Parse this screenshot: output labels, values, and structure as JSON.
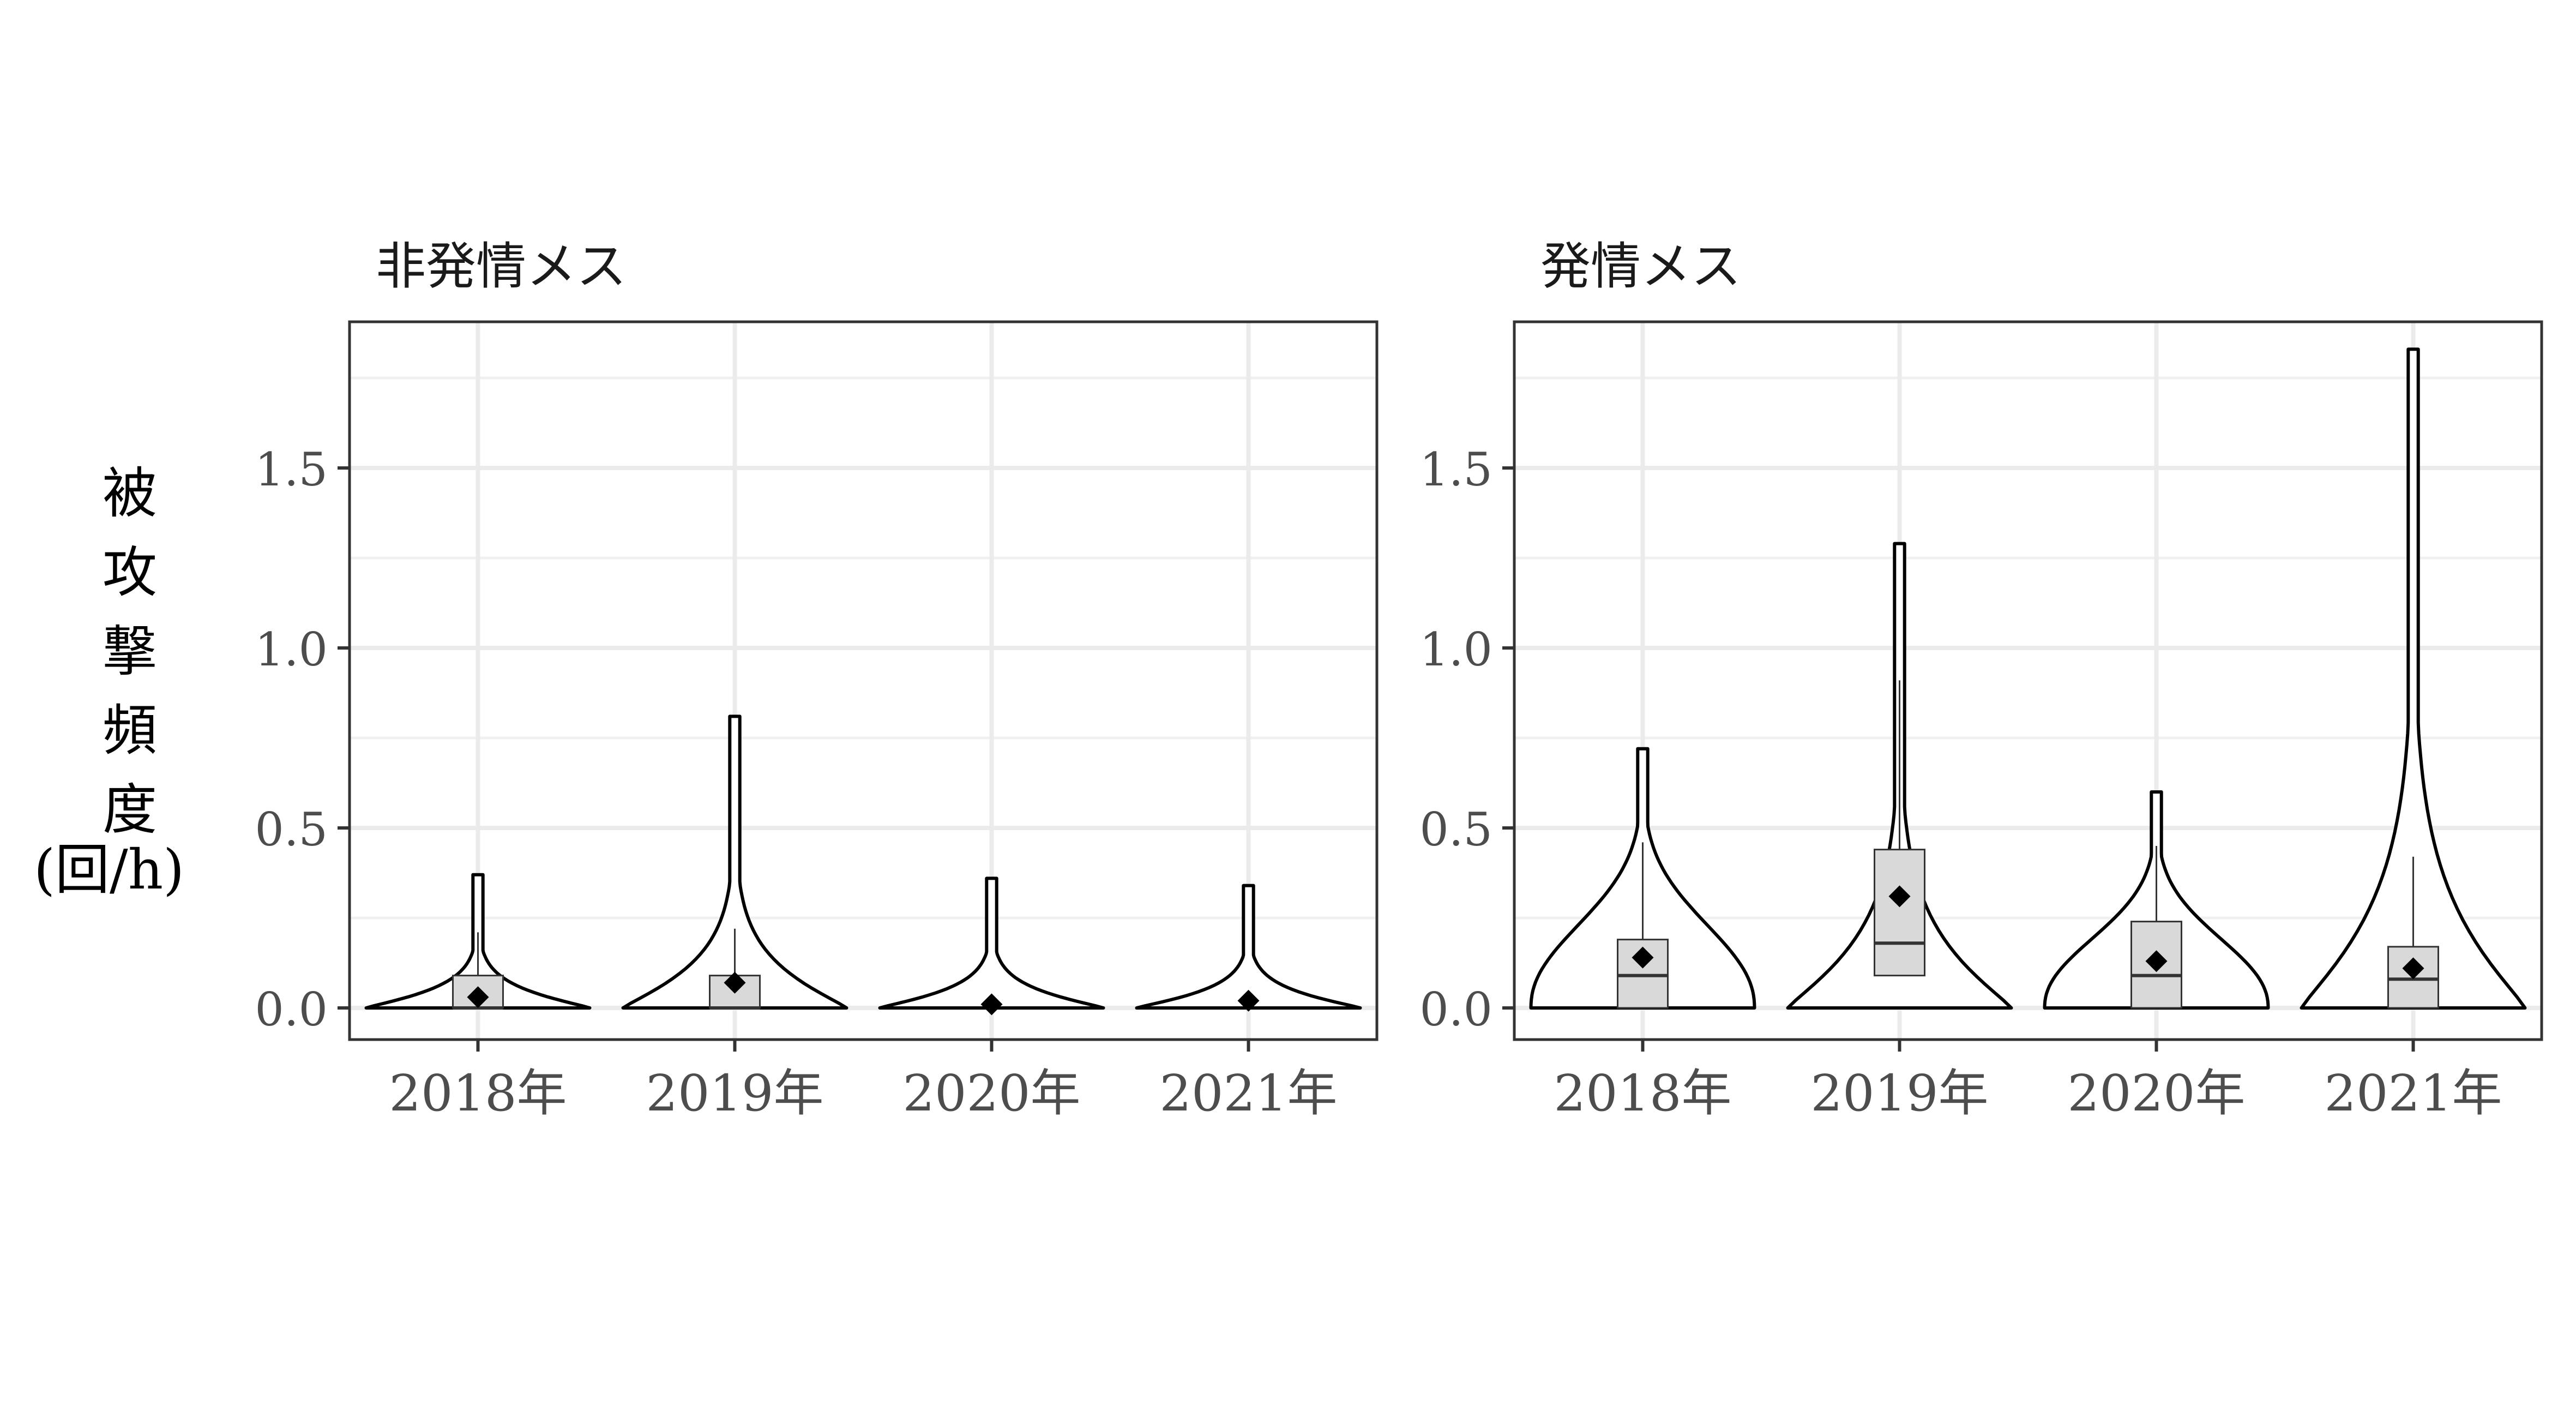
{
  "y_axis_label": {
    "chars": [
      "被",
      "攻",
      "撃",
      "頻",
      "度"
    ],
    "unit": "(回/h)"
  },
  "chart_data": [
    {
      "type": "violin",
      "facet_title": "非発情メス",
      "categories": [
        "2018年",
        "2019年",
        "2020年",
        "2021年"
      ],
      "y_ticks": [
        "0.0",
        "0.5",
        "1.0",
        "1.5"
      ],
      "ylim": [
        -0.08,
        1.92
      ],
      "grid": true,
      "groups": [
        {
          "category": "2018年",
          "violin_max": 0.37,
          "q1": 0.0,
          "median": 0.0,
          "q3": 0.09,
          "whisker_low": 0.0,
          "whisker_high": 0.21,
          "mean": 0.03
        },
        {
          "category": "2019年",
          "violin_max": 0.81,
          "q1": 0.0,
          "median": 0.0,
          "q3": 0.09,
          "whisker_low": 0.0,
          "whisker_high": 0.22,
          "mean": 0.07
        },
        {
          "category": "2020年",
          "violin_max": 0.36,
          "q1": 0.0,
          "median": 0.0,
          "q3": 0.0,
          "whisker_low": 0.0,
          "whisker_high": 0.0,
          "mean": 0.01
        },
        {
          "category": "2021年",
          "violin_max": 0.34,
          "q1": 0.0,
          "median": 0.0,
          "q3": 0.0,
          "whisker_low": 0.0,
          "whisker_high": 0.0,
          "mean": 0.02
        }
      ]
    },
    {
      "type": "violin",
      "facet_title": "発情メス",
      "categories": [
        "2018年",
        "2019年",
        "2020年",
        "2021年"
      ],
      "y_ticks": [
        "0.0",
        "0.5",
        "1.0",
        "1.5"
      ],
      "ylim": [
        -0.08,
        1.92
      ],
      "grid": true,
      "groups": [
        {
          "category": "2018年",
          "violin_max": 0.72,
          "q1": 0.0,
          "median": 0.09,
          "q3": 0.19,
          "whisker_low": 0.0,
          "whisker_high": 0.46,
          "mean": 0.14
        },
        {
          "category": "2019年",
          "violin_max": 1.29,
          "q1": 0.09,
          "median": 0.18,
          "q3": 0.44,
          "whisker_low": 0.0,
          "whisker_high": 0.91,
          "mean": 0.31
        },
        {
          "category": "2020年",
          "violin_max": 0.6,
          "q1": 0.0,
          "median": 0.09,
          "q3": 0.24,
          "whisker_low": 0.0,
          "whisker_high": 0.45,
          "mean": 0.13
        },
        {
          "category": "2021年",
          "violin_max": 1.83,
          "q1": 0.0,
          "median": 0.08,
          "q3": 0.17,
          "whisker_low": 0.0,
          "whisker_high": 0.42,
          "mean": 0.11
        }
      ]
    }
  ]
}
